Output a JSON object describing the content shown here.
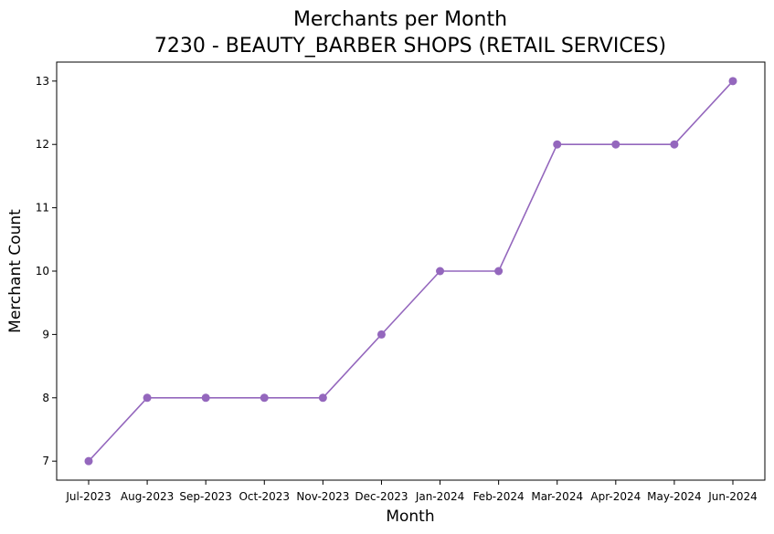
{
  "chart_data": {
    "type": "line",
    "title": "Merchants per Month",
    "subtitle": "7230 - BEAUTY_BARBER SHOPS (RETAIL SERVICES)",
    "xlabel": "Month",
    "ylabel": "Merchant Count",
    "categories": [
      "Jul-2023",
      "Aug-2023",
      "Sep-2023",
      "Oct-2023",
      "Nov-2023",
      "Dec-2023",
      "Jan-2024",
      "Feb-2024",
      "Mar-2024",
      "Apr-2024",
      "May-2024",
      "Jun-2024"
    ],
    "series": [
      {
        "values": [
          7,
          8,
          8,
          8,
          8,
          9,
          10,
          10,
          12,
          12,
          12,
          13
        ],
        "color": "#9467bd"
      }
    ],
    "yticks": [
      7,
      8,
      9,
      10,
      11,
      12,
      13
    ],
    "ylim": [
      6.7,
      13.3
    ],
    "grid": false,
    "legend": "none"
  }
}
